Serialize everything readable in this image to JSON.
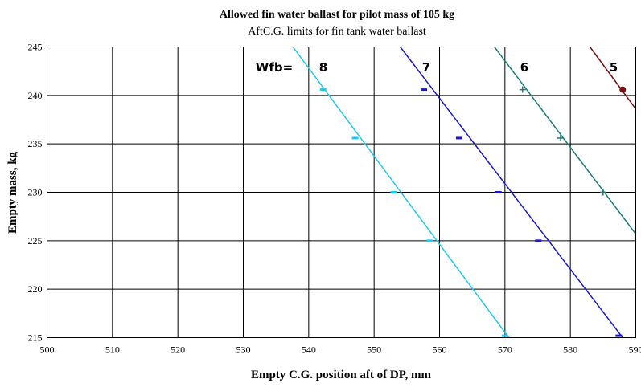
{
  "chart_data": {
    "type": "line",
    "title": "Allowed fin water ballast for pilot mass of 105 kg",
    "subtitle": "AftC.G. limits for fin tank water ballast",
    "xlabel": "Empty C.G.  position aft of DP, mm",
    "ylabel": "Empty mass, kg",
    "xlim": [
      500,
      590
    ],
    "ylim": [
      215,
      245
    ],
    "xticks": [
      500,
      510,
      520,
      530,
      540,
      550,
      560,
      570,
      580,
      590
    ],
    "yticks": [
      215,
      220,
      225,
      230,
      235,
      240,
      245
    ],
    "grid": true,
    "legend_label": "Wfb=",
    "series": [
      {
        "name": "8",
        "color": "#22c9ee",
        "line": [
          [
            537.6,
            245
          ],
          [
            570.6,
            215
          ]
        ],
        "markers": [
          [
            542.2,
            240.6
          ],
          [
            547.1,
            235.6
          ],
          [
            553.0,
            230.0
          ],
          [
            558.5,
            225.0
          ],
          [
            570.0,
            215.2
          ]
        ]
      },
      {
        "name": "7",
        "color": "#1a1acc",
        "line": [
          [
            554.0,
            245
          ],
          [
            588.0,
            215
          ]
        ],
        "markers": [
          [
            557.6,
            240.6
          ],
          [
            563.0,
            235.6
          ],
          [
            569.0,
            230.0
          ],
          [
            575.1,
            225.0
          ],
          [
            587.4,
            215.2
          ]
        ]
      },
      {
        "name": "6",
        "color": "#1d7b7b",
        "line": [
          [
            568.4,
            245
          ],
          [
            590.0,
            225.7
          ]
        ],
        "markers": [
          [
            572.7,
            240.6
          ],
          [
            578.5,
            235.6
          ],
          [
            585.0,
            230.0
          ]
        ]
      },
      {
        "name": "5",
        "color": "#7a1010",
        "line": [
          [
            583.0,
            245
          ],
          [
            590.0,
            238.6
          ]
        ],
        "markers": [
          [
            588.0,
            240.6
          ]
        ]
      }
    ]
  }
}
